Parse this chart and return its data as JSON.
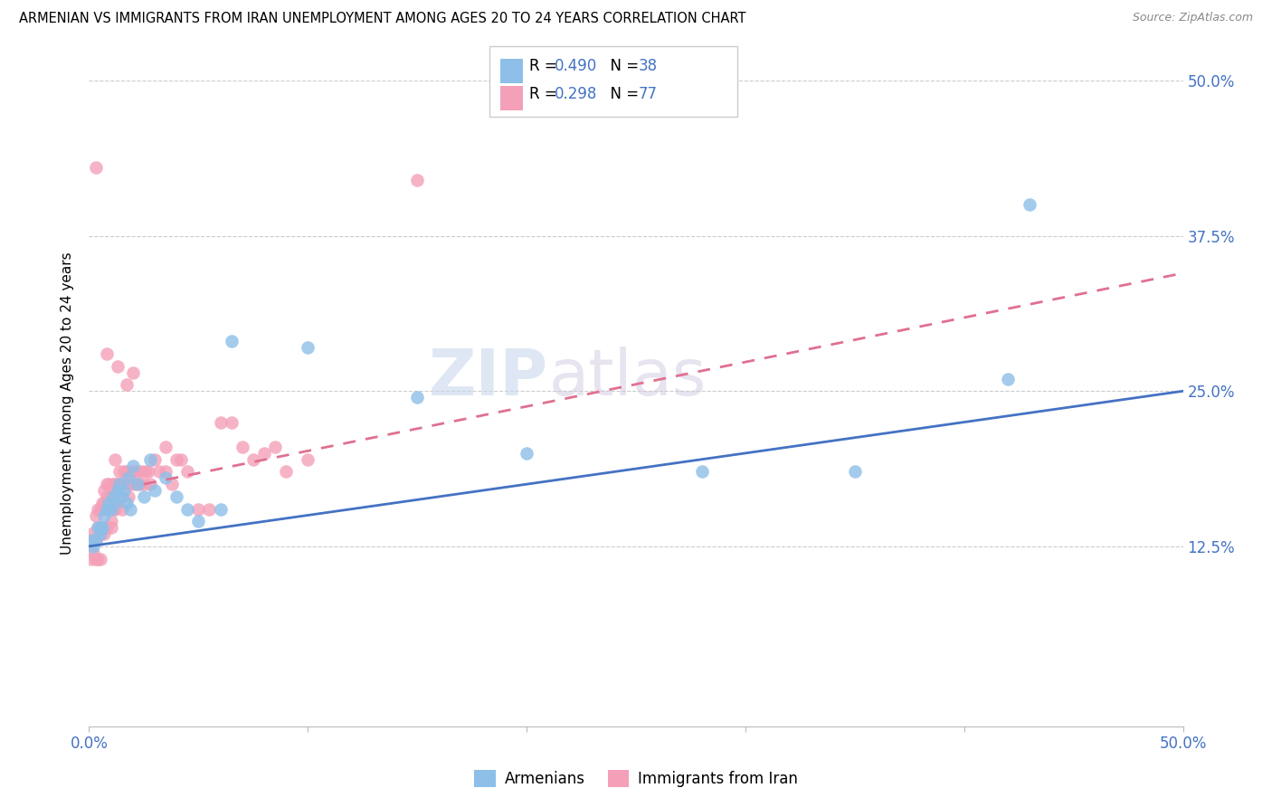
{
  "title": "ARMENIAN VS IMMIGRANTS FROM IRAN UNEMPLOYMENT AMONG AGES 20 TO 24 YEARS CORRELATION CHART",
  "source": "Source: ZipAtlas.com",
  "ylabel": "Unemployment Among Ages 20 to 24 years",
  "legend_label1": "Armenians",
  "legend_label2": "Immigrants from Iran",
  "r1": "0.490",
  "n1": "38",
  "r2": "0.298",
  "n2": "77",
  "color_armenian": "#8dbfe8",
  "color_iran": "#f4a0b8",
  "color_line1": "#4472c4",
  "color_line2": "#e07090",
  "watermark_1": "ZIP",
  "watermark_2": "atlas",
  "line1_x0": 0.0,
  "line1_y0": 0.125,
  "line1_x1": 0.5,
  "line1_y1": 0.25,
  "line2_x0": 0.025,
  "line2_y0": 0.175,
  "line2_x1": 0.5,
  "line2_y1": 0.345,
  "armenian_x": [
    0.001,
    0.002,
    0.003,
    0.004,
    0.005,
    0.005,
    0.006,
    0.007,
    0.008,
    0.009,
    0.01,
    0.011,
    0.012,
    0.013,
    0.014,
    0.015,
    0.016,
    0.017,
    0.018,
    0.019,
    0.02,
    0.022,
    0.025,
    0.028,
    0.03,
    0.035,
    0.04,
    0.045,
    0.05,
    0.06,
    0.065,
    0.1,
    0.15,
    0.2,
    0.28,
    0.35,
    0.42,
    0.43
  ],
  "armenian_y": [
    0.13,
    0.125,
    0.13,
    0.14,
    0.14,
    0.135,
    0.14,
    0.15,
    0.155,
    0.16,
    0.155,
    0.165,
    0.16,
    0.17,
    0.175,
    0.165,
    0.17,
    0.16,
    0.18,
    0.155,
    0.19,
    0.175,
    0.165,
    0.195,
    0.17,
    0.18,
    0.165,
    0.155,
    0.145,
    0.155,
    0.29,
    0.285,
    0.245,
    0.2,
    0.185,
    0.185,
    0.26,
    0.4
  ],
  "iran_x": [
    0.001,
    0.001,
    0.002,
    0.002,
    0.003,
    0.003,
    0.003,
    0.004,
    0.004,
    0.004,
    0.005,
    0.005,
    0.005,
    0.006,
    0.006,
    0.007,
    0.007,
    0.007,
    0.008,
    0.008,
    0.008,
    0.008,
    0.009,
    0.009,
    0.01,
    0.01,
    0.01,
    0.011,
    0.011,
    0.011,
    0.012,
    0.012,
    0.012,
    0.013,
    0.013,
    0.014,
    0.014,
    0.015,
    0.015,
    0.016,
    0.017,
    0.018,
    0.018,
    0.019,
    0.02,
    0.021,
    0.022,
    0.023,
    0.024,
    0.025,
    0.026,
    0.027,
    0.028,
    0.03,
    0.032,
    0.035,
    0.038,
    0.04,
    0.042,
    0.045,
    0.05,
    0.055,
    0.06,
    0.065,
    0.07,
    0.075,
    0.08,
    0.085,
    0.09,
    0.1,
    0.003,
    0.008,
    0.013,
    0.017,
    0.02,
    0.035,
    0.15
  ],
  "iran_y": [
    0.135,
    0.115,
    0.13,
    0.12,
    0.13,
    0.15,
    0.115,
    0.14,
    0.155,
    0.115,
    0.135,
    0.155,
    0.115,
    0.14,
    0.16,
    0.16,
    0.17,
    0.135,
    0.155,
    0.175,
    0.165,
    0.14,
    0.155,
    0.175,
    0.145,
    0.165,
    0.14,
    0.165,
    0.175,
    0.155,
    0.175,
    0.195,
    0.155,
    0.175,
    0.16,
    0.185,
    0.165,
    0.175,
    0.155,
    0.185,
    0.185,
    0.175,
    0.165,
    0.175,
    0.185,
    0.175,
    0.185,
    0.175,
    0.185,
    0.175,
    0.185,
    0.185,
    0.175,
    0.195,
    0.185,
    0.185,
    0.175,
    0.195,
    0.195,
    0.185,
    0.155,
    0.155,
    0.225,
    0.225,
    0.205,
    0.195,
    0.2,
    0.205,
    0.185,
    0.195,
    0.43,
    0.28,
    0.27,
    0.255,
    0.265,
    0.205,
    0.42
  ],
  "xlim": [
    0,
    0.5
  ],
  "ylim": [
    -0.02,
    0.5
  ],
  "yticks": [
    0.125,
    0.25,
    0.375,
    0.5
  ],
  "ytick_labels": [
    "12.5%",
    "25.0%",
    "37.5%",
    "50.0%"
  ],
  "xtick_left_label": "0.0%",
  "xtick_right_label": "50.0%"
}
